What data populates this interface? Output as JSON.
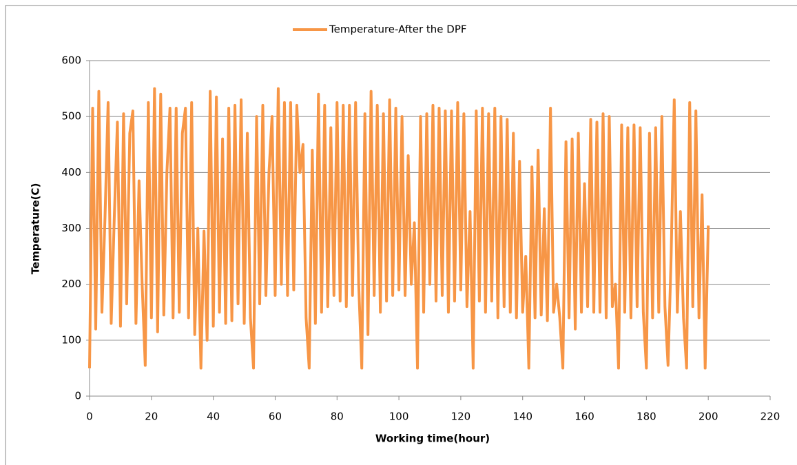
{
  "chart_data": {
    "type": "line",
    "legend": "top",
    "grid": true,
    "xlabel": "Working time(hour)",
    "ylabel": "Temperature(C)",
    "xlim": [
      0,
      220
    ],
    "xticks": [
      0,
      20,
      40,
      60,
      80,
      100,
      120,
      140,
      160,
      180,
      200,
      220
    ],
    "ylim": [
      0,
      600
    ],
    "yticks": [
      0,
      100,
      200,
      300,
      400,
      500,
      600
    ],
    "x": [
      0,
      1,
      2,
      3,
      4,
      5,
      6,
      7,
      8,
      9,
      10,
      11,
      12,
      13,
      14,
      15,
      16,
      17,
      18,
      19,
      20,
      21,
      22,
      23,
      24,
      25,
      26,
      27,
      28,
      29,
      30,
      31,
      32,
      33,
      34,
      35,
      36,
      37,
      38,
      39,
      40,
      41,
      42,
      43,
      44,
      45,
      46,
      47,
      48,
      49,
      50,
      51,
      52,
      53,
      54,
      55,
      56,
      57,
      58,
      59,
      60,
      61,
      62,
      63,
      64,
      65,
      66,
      67,
      68,
      69,
      70,
      71,
      72,
      73,
      74,
      75,
      76,
      77,
      78,
      79,
      80,
      81,
      82,
      83,
      84,
      85,
      86,
      87,
      88,
      89,
      90,
      91,
      92,
      93,
      94,
      95,
      96,
      97,
      98,
      99,
      100,
      101,
      102,
      103,
      104,
      105,
      106,
      107,
      108,
      109,
      110,
      111,
      112,
      113,
      114,
      115,
      116,
      117,
      118,
      119,
      120,
      121,
      122,
      123,
      124,
      125,
      126,
      127,
      128,
      129,
      130,
      131,
      132,
      133,
      134,
      135,
      136,
      137,
      138,
      139,
      140,
      141,
      142,
      143,
      144,
      145,
      146,
      147,
      148,
      149,
      150,
      151,
      152,
      153,
      154,
      155,
      156,
      157,
      158,
      159,
      160,
      161,
      162,
      163,
      164,
      165,
      166,
      167,
      168,
      169,
      170,
      171,
      172,
      173,
      174,
      175,
      176,
      177,
      178,
      179,
      180,
      181,
      182,
      183,
      184,
      185,
      186,
      187,
      188,
      189,
      190,
      191,
      192,
      193,
      194,
      195,
      196,
      197,
      198,
      199,
      200
    ],
    "series": [
      {
        "name": "Temperature-After the DPF",
        "color": "#f79646",
        "values": [
          50,
          515,
          120,
          545,
          150,
          320,
          525,
          130,
          320,
          490,
          125,
          505,
          165,
          470,
          510,
          130,
          385,
          200,
          55,
          525,
          140,
          550,
          115,
          540,
          145,
          400,
          515,
          140,
          515,
          150,
          470,
          515,
          140,
          525,
          110,
          300,
          50,
          295,
          100,
          545,
          125,
          535,
          150,
          460,
          130,
          515,
          135,
          520,
          165,
          530,
          130,
          470,
          140,
          50,
          500,
          165,
          520,
          180,
          400,
          500,
          180,
          550,
          200,
          525,
          180,
          525,
          190,
          520,
          400,
          450,
          140,
          50,
          440,
          130,
          540,
          150,
          520,
          160,
          480,
          180,
          525,
          170,
          520,
          160,
          520,
          180,
          525,
          200,
          50,
          505,
          110,
          545,
          180,
          520,
          150,
          505,
          170,
          530,
          180,
          515,
          190,
          500,
          180,
          430,
          200,
          310,
          50,
          500,
          150,
          505,
          200,
          520,
          170,
          515,
          180,
          510,
          150,
          510,
          170,
          525,
          190,
          505,
          160,
          330,
          50,
          510,
          170,
          515,
          150,
          505,
          170,
          515,
          140,
          500,
          160,
          495,
          150,
          470,
          140,
          420,
          150,
          250,
          50,
          410,
          140,
          440,
          145,
          335,
          135,
          515,
          150,
          200,
          140,
          50,
          455,
          140,
          460,
          120,
          470,
          150,
          380,
          160,
          495,
          150,
          490,
          150,
          505,
          140,
          500,
          160,
          200,
          50,
          485,
          150,
          480,
          140,
          485,
          160,
          480,
          150,
          50,
          470,
          140,
          480,
          150,
          500,
          160,
          55,
          250,
          530,
          150,
          330,
          140,
          50,
          525,
          160,
          510,
          140,
          360,
          50,
          305
        ]
      }
    ]
  }
}
